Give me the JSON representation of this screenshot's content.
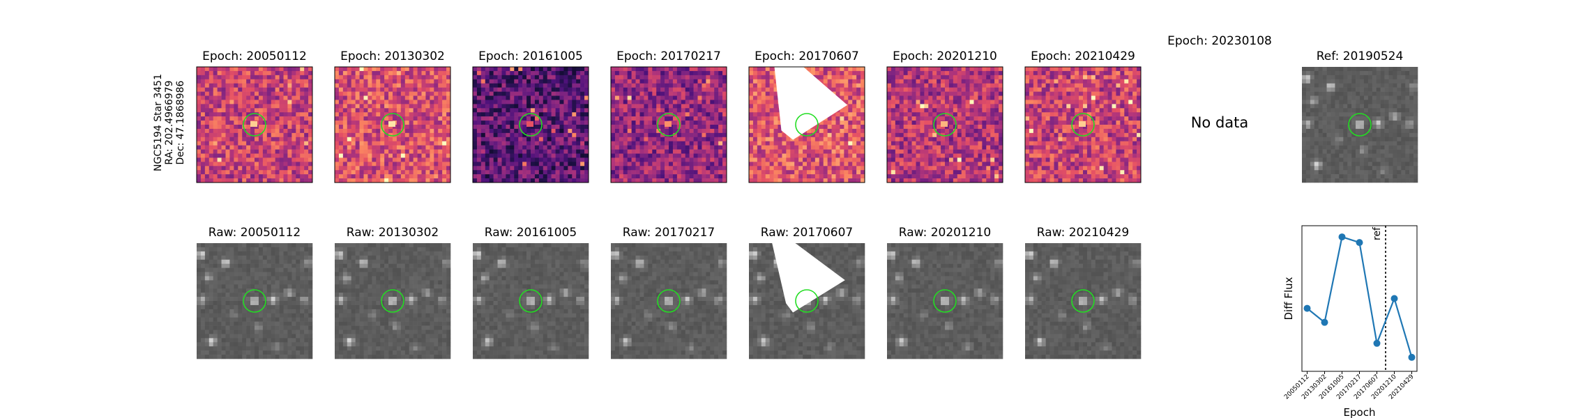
{
  "object_label": {
    "name": "NGC5194 Star 3451",
    "ra": "RA: 202.4966979",
    "dec": "Dec: 47.1868986"
  },
  "epoch_titles": [
    "Epoch: 20050112",
    "Epoch: 20130302",
    "Epoch: 20161005",
    "Epoch: 20170217",
    "Epoch: 20170607",
    "Epoch: 20201210",
    "Epoch: 20210429",
    "Epoch: 20230108"
  ],
  "raw_titles": [
    "Raw: 20050112",
    "Raw: 20130302",
    "Raw: 20161005",
    "Raw: 20170217",
    "Raw: 20170607",
    "Raw: 20201210",
    "Raw: 20210429"
  ],
  "no_data_text": "No data",
  "ref_title": "Ref: 20190524",
  "panels": {
    "diff_colormap": "magma",
    "raw_colormap": "gray",
    "ref_colormap": "gray",
    "aperture_color": "#22dd22",
    "diff_levels": [
      0.55,
      0.6,
      0.28,
      0.42,
      0.62,
      0.5,
      0.55
    ],
    "has_mask": [
      false,
      false,
      false,
      false,
      true,
      false,
      false
    ]
  },
  "chart_data": {
    "type": "line",
    "categories": [
      "20050112",
      "20130302",
      "20161005",
      "20170217",
      "20170607",
      "20201210",
      "20210429"
    ],
    "values": [
      0.45,
      0.35,
      0.96,
      0.92,
      0.2,
      0.52,
      0.1
    ],
    "positions": [
      0,
      1,
      2,
      3,
      4,
      5,
      6
    ],
    "ref_line": {
      "position": 4.5,
      "label": "ref"
    },
    "xlabel": "Epoch",
    "ylabel": "Diff Flux",
    "color": "#1f77b4",
    "ylim": [
      0,
      1.04
    ],
    "grid": false,
    "yticks_shown": false
  }
}
